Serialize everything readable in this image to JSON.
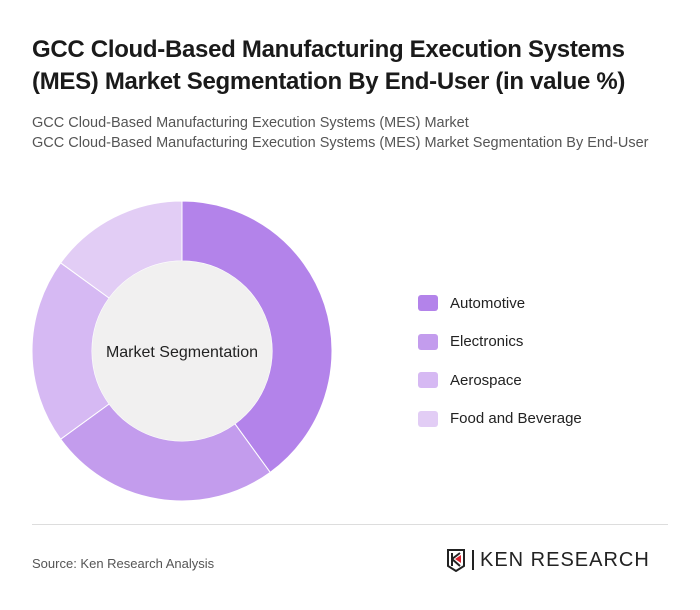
{
  "title": "GCC Cloud-Based Manufacturing Execution Systems (MES) Market Segmentation By End-User (in value %)",
  "subtitle_1": "GCC Cloud-Based Manufacturing Execution Systems (MES) Market",
  "subtitle_2": "GCC Cloud-Based Manufacturing Execution Systems (MES) Market Segmentation By End-User",
  "source": "Source: Ken Research Analysis",
  "logo": "KEN RESEARCH",
  "chart_data": {
    "type": "pie",
    "variant": "donut",
    "center_label": "Market Segmentation",
    "categories": [
      "Automotive",
      "Electronics",
      "Aerospace",
      "Food and Beverage"
    ],
    "values": [
      40,
      25,
      20,
      15
    ],
    "colors": [
      "#b383ea",
      "#c39ced",
      "#d6b9f3",
      "#e2cdf5"
    ],
    "legend_position": "right"
  }
}
